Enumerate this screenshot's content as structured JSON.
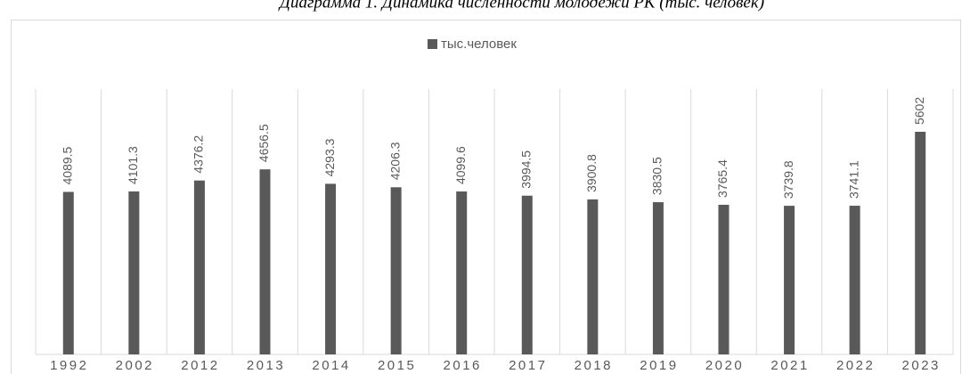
{
  "chart_data": {
    "type": "bar",
    "title": "Диаграмма 1. Динамика численности молодежи РК (тыс. человек)",
    "categories": [
      "1992",
      "2002",
      "2012",
      "2013",
      "2014",
      "2015",
      "2016",
      "2017",
      "2018",
      "2019",
      "2020",
      "2021",
      "2022",
      "2023"
    ],
    "series": [
      {
        "name": "тыс.человек",
        "color": "#595959",
        "values": [
          4089.5,
          4101.3,
          4376.2,
          4656.5,
          4293.3,
          4206.3,
          4099.6,
          3994.5,
          3900.8,
          3830.5,
          3765.4,
          3739.8,
          3741.1,
          5602
        ]
      }
    ],
    "grid": true,
    "legend": "top"
  }
}
